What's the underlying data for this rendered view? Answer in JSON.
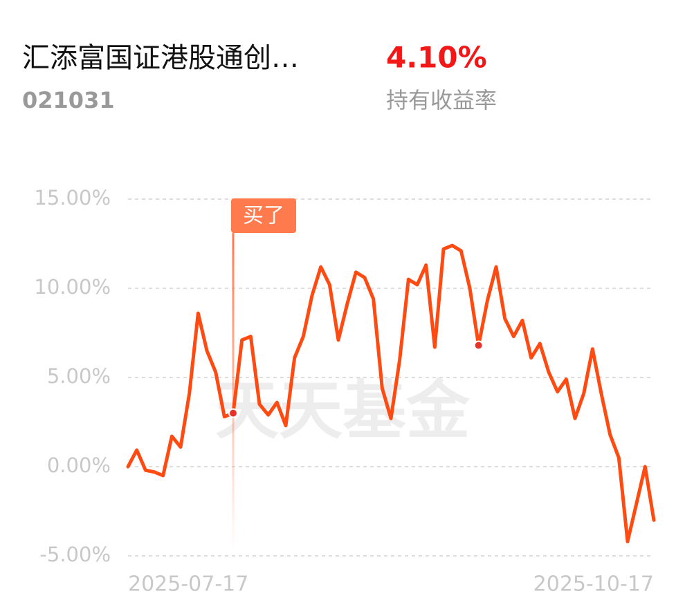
{
  "header": {
    "title": "汇添富国证港股通创…",
    "code": "021031",
    "return": "4.10%",
    "return_label": "持有收益率"
  },
  "chart_data": {
    "type": "line",
    "watermark": "天天基金",
    "annotation": "买了",
    "annotation_index": 12,
    "marker_indices": [
      12,
      40
    ],
    "color": "#ff4b12",
    "categories": [
      "2025-07-17",
      null,
      null,
      null,
      null,
      null,
      null,
      null,
      null,
      null,
      null,
      null,
      null,
      null,
      null,
      null,
      null,
      null,
      null,
      null,
      null,
      null,
      null,
      null,
      null,
      null,
      null,
      null,
      null,
      null,
      null,
      null,
      null,
      null,
      null,
      null,
      null,
      null,
      null,
      null,
      null,
      null,
      null,
      null,
      null,
      null,
      null,
      null,
      null,
      null,
      null,
      null,
      null,
      null,
      null,
      null,
      null,
      null,
      null,
      null,
      "2025-10-17"
    ],
    "values": [
      0.0,
      0.93,
      -0.2,
      -0.3,
      -0.5,
      1.7,
      1.1,
      4.1,
      8.6,
      6.5,
      5.3,
      2.8,
      3.0,
      7.1,
      7.3,
      3.5,
      2.9,
      3.6,
      2.3,
      6.1,
      7.3,
      9.6,
      11.2,
      10.2,
      7.1,
      9.1,
      10.9,
      10.6,
      9.4,
      4.4,
      2.7,
      6.0,
      10.5,
      10.2,
      11.3,
      6.7,
      12.2,
      12.4,
      12.1,
      10.0,
      6.8,
      9.3,
      11.2,
      8.3,
      7.3,
      8.2,
      6.1,
      6.9,
      5.3,
      4.2,
      4.9,
      2.7,
      4.1,
      6.6,
      4.1,
      1.8,
      0.5,
      -4.2,
      -2.1,
      0.0,
      -3.0
    ],
    "ylim": [
      -5,
      15
    ],
    "yticks": [
      {
        "value": -5,
        "label": "-5.00%"
      },
      {
        "value": 0,
        "label": "0.00%"
      },
      {
        "value": 5,
        "label": "5.00%"
      },
      {
        "value": 10,
        "label": "10.00%"
      },
      {
        "value": 15,
        "label": "15.00%"
      }
    ],
    "grid": true
  }
}
